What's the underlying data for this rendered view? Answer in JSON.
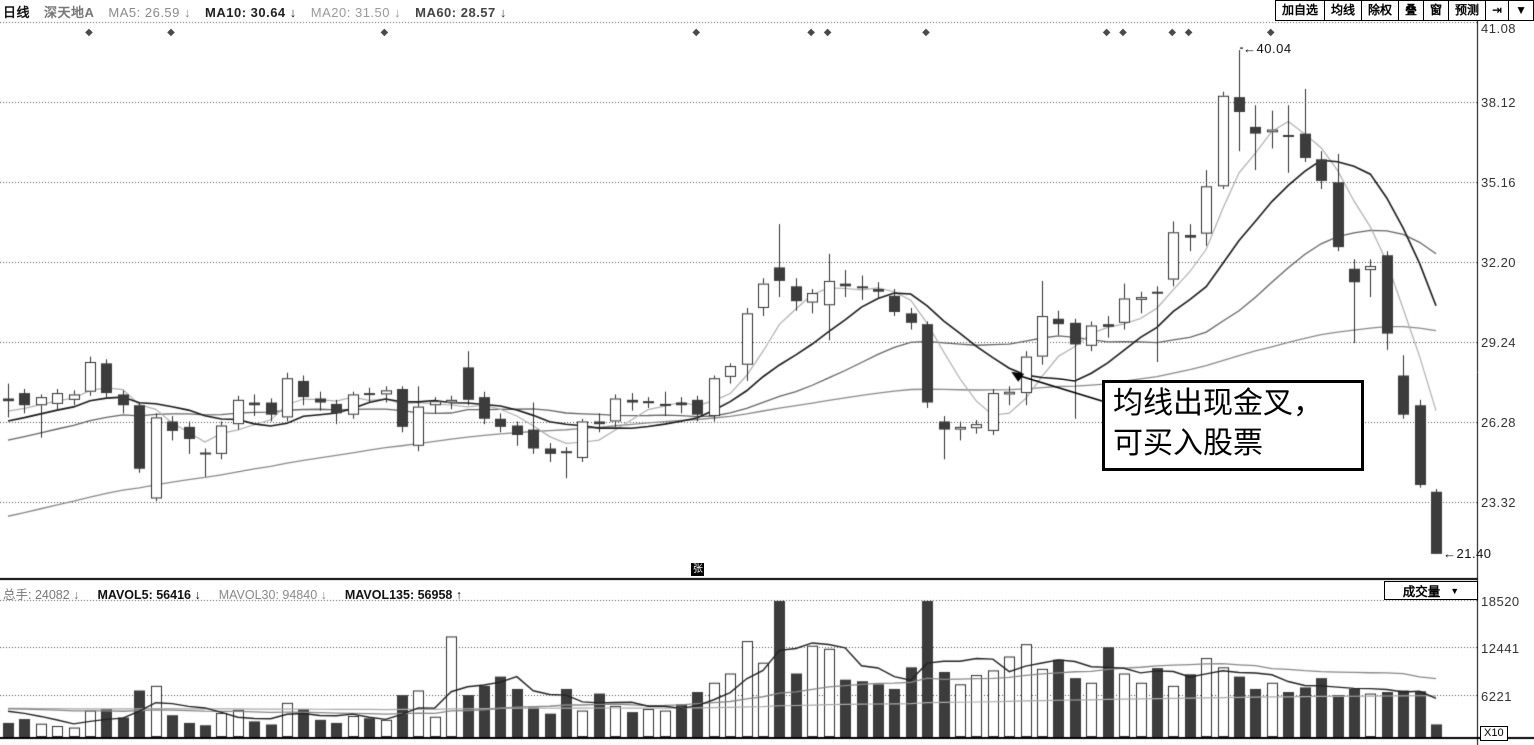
{
  "title_bar": {
    "items": [
      {
        "text": "日线",
        "color": "#111111",
        "bold": true
      },
      {
        "text": "深天地A",
        "color": "#777777",
        "bold": true
      },
      {
        "text": "MA5: 26.59 ↓",
        "color": "#8a8a8a",
        "bold": false
      },
      {
        "text": "MA10: 30.64 ↓",
        "color": "#222222",
        "bold": true
      },
      {
        "text": "MA20: 31.50 ↓",
        "color": "#999999",
        "bold": false
      },
      {
        "text": "MA60: 28.57 ↓",
        "color": "#444444",
        "bold": true
      }
    ]
  },
  "toolbar": {
    "buttons": [
      {
        "label": "加自选",
        "name": "add-watchlist-button"
      },
      {
        "label": "均线",
        "name": "ma-button"
      },
      {
        "label": "除权",
        "name": "exrights-button"
      },
      {
        "label": "叠",
        "name": "overlay-button"
      },
      {
        "label": "窗",
        "name": "window-button"
      },
      {
        "label": "预测",
        "name": "forecast-button"
      },
      {
        "label": "⇥",
        "name": "jump-to-latest-button"
      },
      {
        "label": "▼",
        "name": "toolbar-dropdown-button"
      }
    ]
  },
  "volume_header": {
    "items": [
      {
        "text": "总手: 24082 ↓",
        "color": "#777777",
        "bold": false
      },
      {
        "text": "MAVOL5: 56416 ↓",
        "color": "#111111",
        "bold": true
      },
      {
        "text": "MAVOL30: 94840 ↓",
        "color": "#888888",
        "bold": false
      },
      {
        "text": "MAVOL135: 56958 ↑",
        "color": "#111111",
        "bold": true
      }
    ]
  },
  "volume_select": {
    "label": "成交量",
    "arrow": "▼"
  },
  "annotation": {
    "line1": "均线出现金叉，",
    "line2": "可买入股票",
    "target_index": 61,
    "target_price": 28.1
  },
  "tags": {
    "high": {
      "arrow": "←",
      "text": "40.04",
      "index": 75,
      "price": 40.04
    },
    "low": {
      "arrow": "←",
      "text": "21.40",
      "index": 87,
      "price": 21.4
    }
  },
  "markers": {
    "diamond_glyph": "◆",
    "diamond_indices": [
      5,
      10,
      23,
      42,
      49,
      50,
      56,
      67,
      68,
      71,
      72,
      77
    ],
    "event": {
      "text": "张",
      "index": 42,
      "y": 563
    }
  },
  "price_axis": {
    "labels": [
      "41.08",
      "38.12",
      "35.16",
      "32.20",
      "29.24",
      "26.28",
      "23.32"
    ],
    "values": [
      41.08,
      38.12,
      35.16,
      32.2,
      29.24,
      26.28,
      23.32
    ]
  },
  "volume_axis": {
    "labels": [
      "18520",
      "12441",
      "6221"
    ],
    "values": [
      18520,
      12441,
      6221
    ],
    "x10_label": "X10"
  },
  "colors": {
    "background": "#ffffff",
    "grid": "#555555",
    "candle_fill": "#3c3c3c",
    "candle_outline": "#2f2f2f",
    "ma5": "#b0b0b0",
    "ma10": "#1a1a1a",
    "ma20": "#666666",
    "ma60": "#8a8a8a",
    "mavol5": "#222222",
    "mavol30": "#888888",
    "mavol135": "#aaaaaa",
    "border": "#000000"
  },
  "chart_data": {
    "type": "candlestick+volume",
    "title": "深天地A 日线",
    "ylim": [
      21.4,
      41.08
    ],
    "price_gridlines": [
      41.08,
      38.12,
      35.16,
      32.2,
      29.24,
      26.28,
      23.32
    ],
    "volume_gridlines": [
      18520,
      12441,
      6221
    ],
    "volume_unit": "X10",
    "legend": [
      "MA5",
      "MA10",
      "MA20",
      "MA60",
      "MAVOL5",
      "MAVOL30",
      "MAVOL135"
    ],
    "ma_seed": {
      "start": 18.5,
      "end": 26.8,
      "count": 60
    },
    "vol_seed": {
      "value": 4500,
      "count": 135
    },
    "candles": [
      [
        27.15,
        27.7,
        26.45,
        27.05
      ],
      [
        27.35,
        27.5,
        26.6,
        26.9
      ],
      [
        26.9,
        27.3,
        25.7,
        27.2
      ],
      [
        26.95,
        27.5,
        26.7,
        27.35
      ],
      [
        27.1,
        27.45,
        26.9,
        27.3
      ],
      [
        27.4,
        28.7,
        27.25,
        28.5
      ],
      [
        28.45,
        28.6,
        27.2,
        27.35
      ],
      [
        27.3,
        27.45,
        26.6,
        26.9
      ],
      [
        26.9,
        27.0,
        24.4,
        24.55
      ],
      [
        23.45,
        26.6,
        23.35,
        26.45
      ],
      [
        26.3,
        26.5,
        25.6,
        25.95
      ],
      [
        26.1,
        26.3,
        25.1,
        25.65
      ],
      [
        25.15,
        25.3,
        24.25,
        25.1
      ],
      [
        25.1,
        26.3,
        24.9,
        26.15
      ],
      [
        26.2,
        27.25,
        26.0,
        27.1
      ],
      [
        27.0,
        27.3,
        26.5,
        26.9
      ],
      [
        27.0,
        27.15,
        26.3,
        26.55
      ],
      [
        26.45,
        28.1,
        26.3,
        27.9
      ],
      [
        27.8,
        28.0,
        26.9,
        27.2
      ],
      [
        27.15,
        27.4,
        26.7,
        27.0
      ],
      [
        26.95,
        27.1,
        26.2,
        26.6
      ],
      [
        26.55,
        27.4,
        26.4,
        27.3
      ],
      [
        27.35,
        27.55,
        27.0,
        27.3
      ],
      [
        27.3,
        27.6,
        27.0,
        27.45
      ],
      [
        27.5,
        27.6,
        25.9,
        26.1
      ],
      [
        25.4,
        27.6,
        25.2,
        26.85
      ],
      [
        26.9,
        27.2,
        26.6,
        27.05
      ],
      [
        27.0,
        27.25,
        26.75,
        27.1
      ],
      [
        28.3,
        28.9,
        26.9,
        27.1
      ],
      [
        27.2,
        27.4,
        26.2,
        26.4
      ],
      [
        26.4,
        26.6,
        25.9,
        26.1
      ],
      [
        26.15,
        26.3,
        25.4,
        25.8
      ],
      [
        26.0,
        27.0,
        25.1,
        25.3
      ],
      [
        25.3,
        25.5,
        24.8,
        25.1
      ],
      [
        25.2,
        25.35,
        24.2,
        25.15
      ],
      [
        24.95,
        26.4,
        24.8,
        26.3
      ],
      [
        26.3,
        26.6,
        25.9,
        26.2
      ],
      [
        26.3,
        27.3,
        26.1,
        27.15
      ],
      [
        27.1,
        27.35,
        26.7,
        27.0
      ],
      [
        27.0,
        27.2,
        26.8,
        27.05
      ],
      [
        26.95,
        27.4,
        26.5,
        26.95
      ],
      [
        27.0,
        27.2,
        26.6,
        26.9
      ],
      [
        27.1,
        27.25,
        26.3,
        26.55
      ],
      [
        26.5,
        28.0,
        26.3,
        27.9
      ],
      [
        27.95,
        28.45,
        27.7,
        28.35
      ],
      [
        28.4,
        30.5,
        27.8,
        30.3
      ],
      [
        30.5,
        31.6,
        30.2,
        31.4
      ],
      [
        32.0,
        33.6,
        30.9,
        31.5
      ],
      [
        31.3,
        31.6,
        30.4,
        30.75
      ],
      [
        30.7,
        31.2,
        30.3,
        31.05
      ],
      [
        30.6,
        32.5,
        29.3,
        31.5
      ],
      [
        31.4,
        31.9,
        30.9,
        31.3
      ],
      [
        31.3,
        31.7,
        30.8,
        31.25
      ],
      [
        31.2,
        31.45,
        30.85,
        31.1
      ],
      [
        30.95,
        31.2,
        30.2,
        30.35
      ],
      [
        30.3,
        30.5,
        29.7,
        29.95
      ],
      [
        29.9,
        30.0,
        26.8,
        27.0
      ],
      [
        26.3,
        26.5,
        24.9,
        26.0
      ],
      [
        26.0,
        26.3,
        25.6,
        26.1
      ],
      [
        26.05,
        26.35,
        25.85,
        26.2
      ],
      [
        25.95,
        27.5,
        25.8,
        27.35
      ],
      [
        27.3,
        27.6,
        26.9,
        27.4
      ],
      [
        27.35,
        28.9,
        26.9,
        28.7
      ],
      [
        28.7,
        31.5,
        28.4,
        30.2
      ],
      [
        30.1,
        30.4,
        29.5,
        29.9
      ],
      [
        29.95,
        30.1,
        26.4,
        29.15
      ],
      [
        29.1,
        30.0,
        28.9,
        29.85
      ],
      [
        29.9,
        30.2,
        29.4,
        29.8
      ],
      [
        29.95,
        31.4,
        29.7,
        30.85
      ],
      [
        30.8,
        31.1,
        30.3,
        30.9
      ],
      [
        31.1,
        31.3,
        28.5,
        31.05
      ],
      [
        31.55,
        33.7,
        31.3,
        33.3
      ],
      [
        33.2,
        33.6,
        32.6,
        33.1
      ],
      [
        33.25,
        35.6,
        32.8,
        35.0
      ],
      [
        35.0,
        38.5,
        34.9,
        38.35
      ],
      [
        38.3,
        40.04,
        36.3,
        37.75
      ],
      [
        37.2,
        38.0,
        35.6,
        36.95
      ],
      [
        37.0,
        37.8,
        36.4,
        37.1
      ],
      [
        36.9,
        38.0,
        35.5,
        36.85
      ],
      [
        36.95,
        38.6,
        35.9,
        36.05
      ],
      [
        36.0,
        36.3,
        34.9,
        35.2
      ],
      [
        35.15,
        36.2,
        32.6,
        32.75
      ],
      [
        31.95,
        32.3,
        29.2,
        31.45
      ],
      [
        31.9,
        32.3,
        30.9,
        32.05
      ],
      [
        32.45,
        32.6,
        28.95,
        29.55
      ],
      [
        28.0,
        28.75,
        26.4,
        26.55
      ],
      [
        26.9,
        27.1,
        23.85,
        23.95
      ],
      [
        23.7,
        23.8,
        21.4,
        21.4
      ]
    ],
    "volumes": [
      2600,
      3100,
      2500,
      2200,
      2000,
      4200,
      4400,
      3300,
      6800,
      7400,
      3600,
      2600,
      2300,
      3900,
      4300,
      2800,
      2400,
      5200,
      4400,
      3000,
      2600,
      3500,
      3200,
      3000,
      6200,
      6800,
      3400,
      13800,
      6200,
      7400,
      8600,
      7000,
      4600,
      3800,
      7000,
      4200,
      6400,
      4800,
      4000,
      4400,
      4200,
      5000,
      6600,
      7800,
      9000,
      13200,
      10400,
      19600,
      9000,
      12600,
      12200,
      8200,
      8000,
      7600,
      7000,
      9800,
      19300,
      9200,
      7600,
      8800,
      9400,
      11200,
      12800,
      9600,
      10800,
      8400,
      7800,
      12400,
      9000,
      7800,
      9700,
      7400,
      8900,
      11000,
      9800,
      8600,
      7000,
      7800,
      6600,
      7200,
      8400,
      6200,
      7000,
      6400,
      6600,
      6800,
      6700,
      2408
    ]
  }
}
